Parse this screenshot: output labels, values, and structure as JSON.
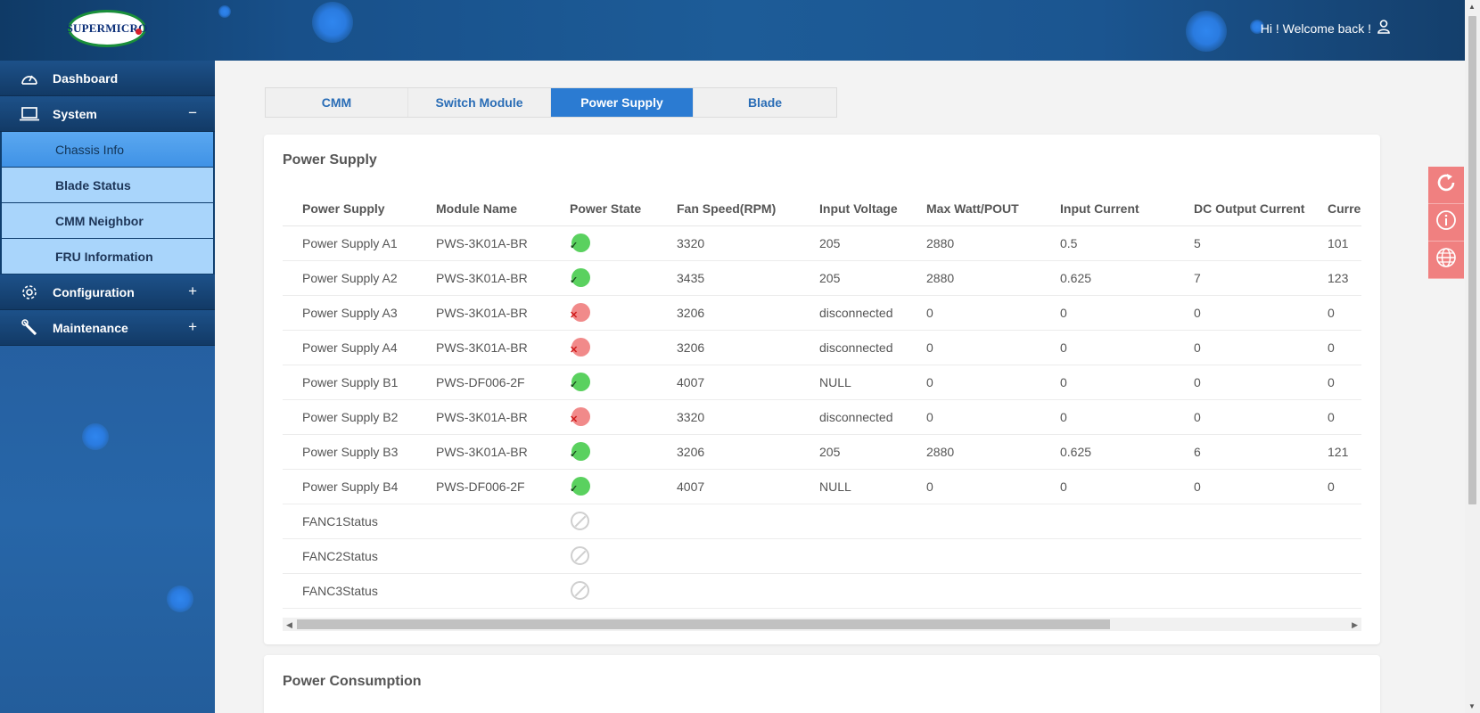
{
  "header": {
    "logo_text": "SUPERMICRO",
    "welcome_text": "Hi ! Welcome back !",
    "user_icon": "user-icon"
  },
  "sidebar": {
    "items": [
      {
        "label": "Dashboard",
        "icon": "dashboard-icon",
        "toggle": ""
      },
      {
        "label": "System",
        "icon": "laptop-icon",
        "toggle": "−"
      },
      {
        "label": "Chassis Info"
      },
      {
        "label": "Blade Status"
      },
      {
        "label": "CMM Neighbor"
      },
      {
        "label": "FRU Information"
      },
      {
        "label": "Configuration",
        "icon": "gear-icon",
        "toggle": "+"
      },
      {
        "label": "Maintenance",
        "icon": "wrench-icon",
        "toggle": "+"
      }
    ]
  },
  "tabs": [
    "CMM",
    "Switch Module",
    "Power Supply",
    "Blade"
  ],
  "active_tab": "Power Supply",
  "power_supply": {
    "title": "Power Supply",
    "columns": [
      "Power Supply",
      "Module Name",
      "Power State",
      "Fan Speed(RPM)",
      "Input Voltage",
      "Max Watt/POUT",
      "Input Current",
      "DC Output Current",
      "Curre"
    ],
    "rows": [
      {
        "name": "Power Supply A1",
        "module": "PWS-3K01A-BR",
        "state": "ok",
        "fan": "3320",
        "voltage": "205",
        "maxwatt": "2880",
        "input_current": "0.5",
        "dc_current": "5",
        "current": "101"
      },
      {
        "name": "Power Supply A2",
        "module": "PWS-3K01A-BR",
        "state": "ok",
        "fan": "3435",
        "voltage": "205",
        "maxwatt": "2880",
        "input_current": "0.625",
        "dc_current": "7",
        "current": "123"
      },
      {
        "name": "Power Supply A3",
        "module": "PWS-3K01A-BR",
        "state": "error",
        "fan": "3206",
        "voltage": "disconnected",
        "maxwatt": "0",
        "input_current": "0",
        "dc_current": "0",
        "current": "0"
      },
      {
        "name": "Power Supply A4",
        "module": "PWS-3K01A-BR",
        "state": "error",
        "fan": "3206",
        "voltage": "disconnected",
        "maxwatt": "0",
        "input_current": "0",
        "dc_current": "0",
        "current": "0"
      },
      {
        "name": "Power Supply B1",
        "module": "PWS-DF006-2F",
        "state": "ok",
        "fan": "4007",
        "voltage": "NULL",
        "maxwatt": "0",
        "input_current": "0",
        "dc_current": "0",
        "current": "0"
      },
      {
        "name": "Power Supply B2",
        "module": "PWS-3K01A-BR",
        "state": "error",
        "fan": "3320",
        "voltage": "disconnected",
        "maxwatt": "0",
        "input_current": "0",
        "dc_current": "0",
        "current": "0"
      },
      {
        "name": "Power Supply B3",
        "module": "PWS-3K01A-BR",
        "state": "ok",
        "fan": "3206",
        "voltage": "205",
        "maxwatt": "2880",
        "input_current": "0.625",
        "dc_current": "6",
        "current": "121"
      },
      {
        "name": "Power Supply B4",
        "module": "PWS-DF006-2F",
        "state": "ok",
        "fan": "4007",
        "voltage": "NULL",
        "maxwatt": "0",
        "input_current": "0",
        "dc_current": "0",
        "current": "0"
      },
      {
        "name": "FANC1Status",
        "module": "",
        "state": "na",
        "fan": "",
        "voltage": "",
        "maxwatt": "",
        "input_current": "",
        "dc_current": "",
        "current": ""
      },
      {
        "name": "FANC2Status",
        "module": "",
        "state": "na",
        "fan": "",
        "voltage": "",
        "maxwatt": "",
        "input_current": "",
        "dc_current": "",
        "current": ""
      },
      {
        "name": "FANC3Status",
        "module": "",
        "state": "na",
        "fan": "",
        "voltage": "",
        "maxwatt": "",
        "input_current": "",
        "dc_current": "",
        "current": ""
      }
    ]
  },
  "power_consumption": {
    "title": "Power Consumption"
  },
  "side_buttons": [
    "refresh-icon",
    "info-icon",
    "globe-icon"
  ],
  "colors": {
    "accent": "#2b7bd2",
    "status_ok": "#5ad15f",
    "status_error": "#f18a8a",
    "side_button": "#f08080"
  }
}
